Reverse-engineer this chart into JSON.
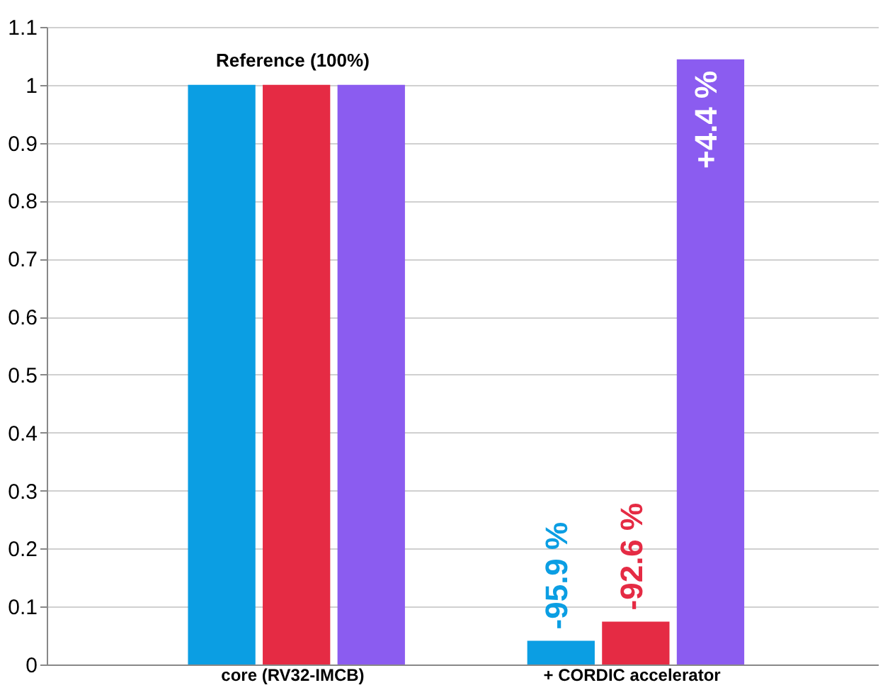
{
  "chart_data": {
    "type": "bar",
    "categories": [
      "core (RV32-IMCB)",
      "+ CORDIC accelerator"
    ],
    "series": [
      {
        "color": "#0b9ee3",
        "values": [
          1,
          0.041
        ]
      },
      {
        "color": "#e52b44",
        "values": [
          1,
          0.074
        ]
      },
      {
        "color": "#8b5cf0",
        "values": [
          1,
          1.044
        ]
      }
    ],
    "ylim": [
      0,
      1.1
    ],
    "yticks": [
      0,
      0.1,
      0.2,
      0.3,
      0.4,
      0.5,
      0.6,
      0.7,
      0.8,
      0.9,
      1,
      1.1
    ],
    "grid": "y",
    "legend": false,
    "annotations": [
      {
        "text": "Reference (100%)",
        "x": "core (RV32-IMCB)",
        "y": 1
      },
      "-95.9 %",
      "-92.6 %",
      "+4.4 %"
    ]
  }
}
